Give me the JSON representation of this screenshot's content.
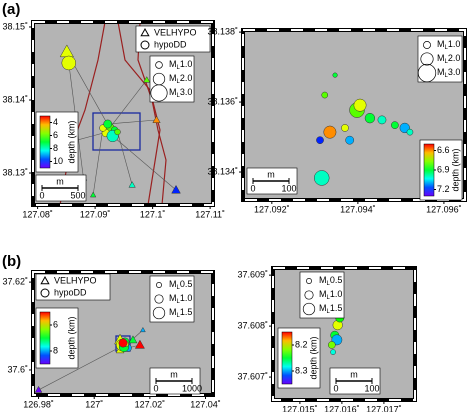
{
  "chart_data": [
    {
      "type": "scatter",
      "panel_label": "(a)",
      "xlim": [
        127.0792,
        127.1105
      ],
      "ylim": [
        38.12562,
        38.15068
      ],
      "xticks": [
        {
          "value": 127.08,
          "label": "127.08˚"
        },
        {
          "value": 127.09,
          "label": "127.09˚"
        },
        {
          "value": 127.1,
          "label": "127.1˚"
        },
        {
          "value": 127.11,
          "label": "127.11˚"
        }
      ],
      "yticks": [
        {
          "value": 38.13,
          "label": "38.13˚"
        },
        {
          "value": 38.14,
          "label": "38.14˚"
        },
        {
          "value": 38.15,
          "label": "38.15˚"
        }
      ],
      "series": [
        {
          "name": "VELHYPO",
          "marker": "triangle",
          "x": [
            127.08508,
            127.08373,
            127.09898,
            127.10407,
            127.09644,
            127.08966,
            127.10068,
            127.08797
          ],
          "y": [
            38.14658,
            38.13384,
            38.14274,
            38.12767,
            38.12836,
            38.12699,
            38.13726,
            38.12932
          ],
          "size": [
            2.5,
            1.2,
            1.0,
            1.5,
            1.0,
            0.8,
            1.2,
            1.0
          ],
          "depth": [
            5,
            9,
            6,
            10,
            8,
            7,
            4,
            9
          ]
        },
        {
          "name": "hypoDD",
          "marker": "circle",
          "x": [
            127.09254,
            127.09339,
            127.09186,
            127.09305,
            127.0939,
            127.09136,
            127.0922,
            127.08542
          ],
          "y": [
            38.13616,
            38.13589,
            38.13548,
            38.13507,
            38.13562,
            38.13616,
            38.13671,
            38.14507
          ],
          "size": [
            1.5,
            1.0,
            1.2,
            2.0,
            0.8,
            1.0,
            1.3,
            2.5
          ],
          "depth": [
            6,
            7,
            5,
            8,
            6,
            5,
            7,
            5
          ]
        }
      ],
      "magnitude_legend": {
        "prefix": "M",
        "subscript": "L",
        "ticks": [
          {
            "value": 1,
            "label": "1.0"
          },
          {
            "value": 2,
            "label": "2.0"
          },
          {
            "value": 3,
            "label": "3.0"
          }
        ]
      },
      "colorbar": {
        "label": "depth (km)",
        "lim": [
          3,
          11
        ],
        "ticks": [
          4,
          6,
          8,
          10
        ]
      },
      "scale_bar": {
        "unit": "m",
        "ticks": [
          0,
          500
        ]
      }
    },
    {
      "type": "scatter",
      "xlim": [
        127.09133,
        127.09649
      ],
      "ylim": [
        38.1332,
        38.13806
      ],
      "xticks": [
        {
          "value": 127.092,
          "label": "127.092˚"
        },
        {
          "value": 127.094,
          "label": "127.094˚"
        },
        {
          "value": 127.096,
          "label": "127.096˚"
        }
      ],
      "yticks": [
        {
          "value": 38.134,
          "label": "38.134˚"
        },
        {
          "value": 38.136,
          "label": "38.136˚"
        },
        {
          "value": 38.138,
          "label": "38.138˚"
        }
      ],
      "series": [
        {
          "marker": "circle",
          "x": [
            127.09398,
            127.09405,
            127.09428,
            127.09456,
            127.09486,
            127.09509,
            127.09347,
            127.09323,
            127.09335,
            127.09312,
            127.09381,
            127.09316,
            127.0937,
            127.09521
          ],
          "y": [
            38.13577,
            38.13591,
            38.13554,
            38.13549,
            38.13534,
            38.13526,
            38.13677,
            38.1362,
            38.13514,
            38.13491,
            38.13491,
            38.13383,
            38.13526,
            38.13514
          ],
          "size": [
            2.5,
            2.0,
            1.5,
            1.2,
            1.0,
            1.5,
            0.5,
            0.8,
            2.0,
            1.0,
            1.2,
            2.5,
            1.0,
            0.8
          ],
          "depth": [
            6.8,
            6.7,
            6.9,
            7.0,
            6.9,
            7.1,
            6.9,
            6.8,
            6.6,
            7.2,
            7.1,
            7.0,
            6.7,
            7.0
          ]
        }
      ],
      "magnitude_legend": {
        "prefix": "M",
        "subscript": "L",
        "ticks": [
          {
            "value": 1,
            "label": "1.0"
          },
          {
            "value": 2,
            "label": "2.0"
          },
          {
            "value": 3,
            "label": "3.0"
          }
        ]
      },
      "colorbar": {
        "label": "depth (km)",
        "lim": [
          6.5,
          7.3
        ],
        "ticks": [
          6.6,
          6.9,
          7.2
        ]
      },
      "scale_bar": {
        "unit": "m",
        "ticks": [
          0,
          100
        ]
      }
    },
    {
      "type": "scatter",
      "panel_label": "(b)",
      "xlim": [
        126.978,
        127.0427
      ],
      "ylim": [
        37.5943,
        37.6223
      ],
      "xticks": [
        {
          "value": 126.98,
          "label": "126.98˚"
        },
        {
          "value": 127,
          "label": "127˚"
        },
        {
          "value": 127.02,
          "label": "127.02˚"
        },
        {
          "value": 127.04,
          "label": "127.04˚"
        }
      ],
      "yticks": [
        {
          "value": 37.6,
          "label": "37.6˚"
        },
        {
          "value": 37.62,
          "label": "37.62˚"
        }
      ],
      "series": [
        {
          "name": "VELHYPO",
          "marker": "triangle",
          "x": [
            127.00929,
            127.01393,
            127.01643,
            127.0175,
            126.98,
            127.00929
          ],
          "y": [
            37.60682,
            37.60682,
            37.60568,
            37.60909,
            37.59545,
            37.60455
          ],
          "size": [
            1.5,
            1.0,
            1.2,
            0.5,
            0.8,
            1.0
          ],
          "depth": [
            6,
            7,
            5,
            8,
            9,
            6
          ]
        },
        {
          "name": "hypoDD",
          "marker": "circle",
          "x": [
            127.01,
            127.01107,
            127.01214,
            127.01071,
            127.01143,
            127.01036
          ],
          "y": [
            37.60568,
            37.60636,
            37.605,
            37.60523,
            37.60591,
            37.60614
          ],
          "size": [
            1.5,
            1.0,
            0.8,
            1.2,
            0.5,
            1.0
          ],
          "depth": [
            6,
            7,
            8,
            7,
            6,
            5
          ]
        }
      ],
      "magnitude_legend": {
        "prefix": "M",
        "subscript": "L",
        "ticks": [
          {
            "value": 0.5,
            "label": "0.5"
          },
          {
            "value": 1,
            "label": "1.0"
          },
          {
            "value": 1.5,
            "label": "1.5"
          }
        ]
      },
      "colorbar": {
        "label": "depth (km)",
        "lim": [
          5,
          9
        ],
        "ticks": [
          6,
          8
        ]
      },
      "scale_bar": {
        "unit": "m",
        "ticks": [
          0,
          1000
        ]
      }
    },
    {
      "type": "scatter",
      "xlim": [
        127.01436,
        127.01774
      ],
      "ylim": [
        37.60655,
        37.60914
      ],
      "xticks": [
        {
          "value": 127.015,
          "label": "127.015˚"
        },
        {
          "value": 127.016,
          "label": "127.016˚"
        },
        {
          "value": 127.017,
          "label": "127.017˚"
        }
      ],
      "yticks": [
        {
          "value": 37.607,
          "label": "37.607˚"
        },
        {
          "value": 37.608,
          "label": "37.608˚"
        },
        {
          "value": 37.609,
          "label": "37.609˚"
        }
      ],
      "series": [
        {
          "marker": "circle",
          "x": [
            127.0159,
            127.01583,
            127.01588,
            127.01576,
            127.01579,
            127.01595
          ],
          "y": [
            37.60802,
            37.60782,
            37.60773,
            37.60763,
            37.60749,
            37.60816
          ],
          "size": [
            1.2,
            1.0,
            1.3,
            0.8,
            0.5,
            1.0
          ],
          "depth": [
            8.2,
            8.25,
            8.3,
            8.22,
            8.28,
            8.24
          ]
        }
      ],
      "magnitude_legend": {
        "prefix": "M",
        "subscript": "L",
        "ticks": [
          {
            "value": 0.5,
            "label": "0.5"
          },
          {
            "value": 1,
            "label": "1.0"
          },
          {
            "value": 1.5,
            "label": "1.5"
          }
        ]
      },
      "colorbar": {
        "label": "depth (km)",
        "lim": [
          8.15,
          8.35
        ],
        "ticks": [
          8.2,
          8.3
        ]
      },
      "scale_bar": {
        "unit": "m",
        "ticks": [
          0,
          100
        ]
      }
    }
  ]
}
